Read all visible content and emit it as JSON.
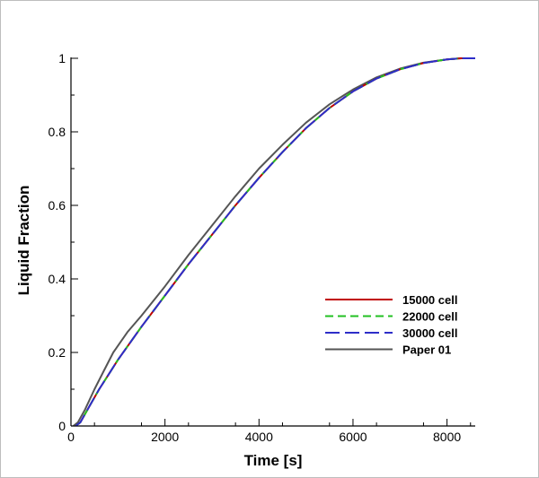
{
  "chart_data": {
    "type": "line",
    "xlabel": "Time [s]",
    "ylabel": "Liquid Fraction",
    "xlim": [
      0,
      8600
    ],
    "ylim": [
      0,
      1
    ],
    "x_ticks": [
      "0",
      "2000",
      "4000",
      "6000",
      "8000"
    ],
    "x_tick_values": [
      0,
      2000,
      4000,
      6000,
      8000
    ],
    "y_ticks": [
      "0",
      "0.2",
      "0.4",
      "0.6",
      "0.8",
      "1"
    ],
    "y_tick_values": [
      0,
      0.2,
      0.4,
      0.6,
      0.8,
      1
    ],
    "grid": false,
    "legend_position": "lower-right",
    "series": [
      {
        "name": "15000 cell",
        "color": "#c00000",
        "dash": "solid",
        "x": [
          100,
          200,
          400,
          600,
          800,
          1000,
          1500,
          2000,
          2500,
          3000,
          3500,
          4000,
          4500,
          5000,
          5500,
          6000,
          6500,
          7000,
          7500,
          8000,
          8300,
          8600
        ],
        "y": [
          0.0,
          0.01,
          0.055,
          0.1,
          0.14,
          0.18,
          0.27,
          0.355,
          0.44,
          0.52,
          0.6,
          0.675,
          0.745,
          0.81,
          0.865,
          0.91,
          0.945,
          0.97,
          0.987,
          0.997,
          1.0,
          1.0
        ]
      },
      {
        "name": "22000 cell",
        "color": "#22c022",
        "dash": "dashed",
        "x": [
          100,
          200,
          400,
          600,
          800,
          1000,
          1500,
          2000,
          2500,
          3000,
          3500,
          4000,
          4500,
          5000,
          5500,
          6000,
          6500,
          7000,
          7500,
          8000,
          8300,
          8600
        ],
        "y": [
          0.0,
          0.01,
          0.055,
          0.1,
          0.14,
          0.18,
          0.27,
          0.355,
          0.44,
          0.52,
          0.6,
          0.675,
          0.745,
          0.81,
          0.865,
          0.91,
          0.945,
          0.97,
          0.987,
          0.997,
          1.0,
          1.0
        ]
      },
      {
        "name": "30000 cell",
        "color": "#2d2dc8",
        "dash": "longdash",
        "x": [
          100,
          200,
          400,
          600,
          800,
          1000,
          1500,
          2000,
          2500,
          3000,
          3500,
          4000,
          4500,
          5000,
          5500,
          6000,
          6500,
          7000,
          7500,
          8000,
          8300,
          8600
        ],
        "y": [
          0.0,
          0.01,
          0.055,
          0.1,
          0.14,
          0.18,
          0.27,
          0.355,
          0.44,
          0.52,
          0.6,
          0.675,
          0.745,
          0.81,
          0.865,
          0.91,
          0.945,
          0.97,
          0.987,
          0.997,
          1.0,
          1.0
        ]
      },
      {
        "name": "Paper 01",
        "color": "#555555",
        "dash": "solid",
        "x": [
          50,
          150,
          300,
          500,
          700,
          900,
          1200,
          1500,
          2000,
          2500,
          3000,
          3500,
          4000,
          4500,
          5000,
          5500,
          6000,
          6500,
          7000,
          7500,
          8000,
          8300,
          8600
        ],
        "y": [
          0.0,
          0.01,
          0.045,
          0.1,
          0.15,
          0.2,
          0.255,
          0.3,
          0.38,
          0.465,
          0.545,
          0.625,
          0.7,
          0.765,
          0.825,
          0.875,
          0.915,
          0.948,
          0.972,
          0.988,
          0.997,
          1.0,
          1.0
        ]
      }
    ]
  }
}
